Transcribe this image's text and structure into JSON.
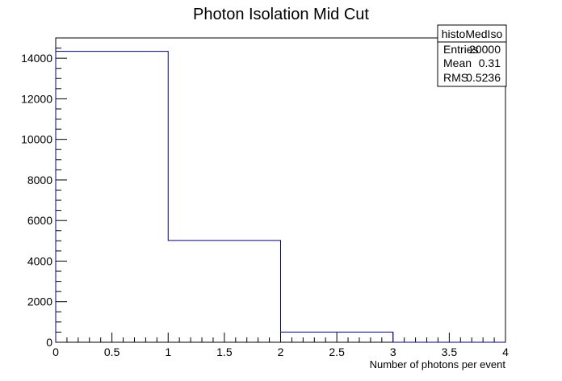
{
  "chart_data": {
    "type": "histogram",
    "title": "Photon Isolation Mid Cut",
    "xlabel": "Number of photons per event",
    "ylabel": "",
    "xlim": [
      0,
      4
    ],
    "ylim": [
      0,
      15000
    ],
    "grid": false,
    "bins": [
      {
        "low": 0,
        "high": 1,
        "value": 14340
      },
      {
        "low": 1,
        "high": 2,
        "value": 5020
      },
      {
        "low": 2,
        "high": 3,
        "value": 500
      },
      {
        "low": 3,
        "high": 4,
        "value": 0
      }
    ],
    "x_ticks": [
      "0",
      "0.5",
      "1",
      "1.5",
      "2",
      "2.5",
      "3",
      "3.5",
      "4"
    ],
    "y_ticks": [
      "0",
      "2000",
      "4000",
      "6000",
      "8000",
      "10000",
      "12000",
      "14000"
    ],
    "line_color": "#000080",
    "stats_box": {
      "name": "histoMedIso",
      "placement": "top-right",
      "rows": [
        {
          "label": "Entries",
          "value": "20000"
        },
        {
          "label": "Mean",
          "value": "0.31"
        },
        {
          "label": "RMS",
          "value": "0.5236"
        }
      ]
    }
  }
}
